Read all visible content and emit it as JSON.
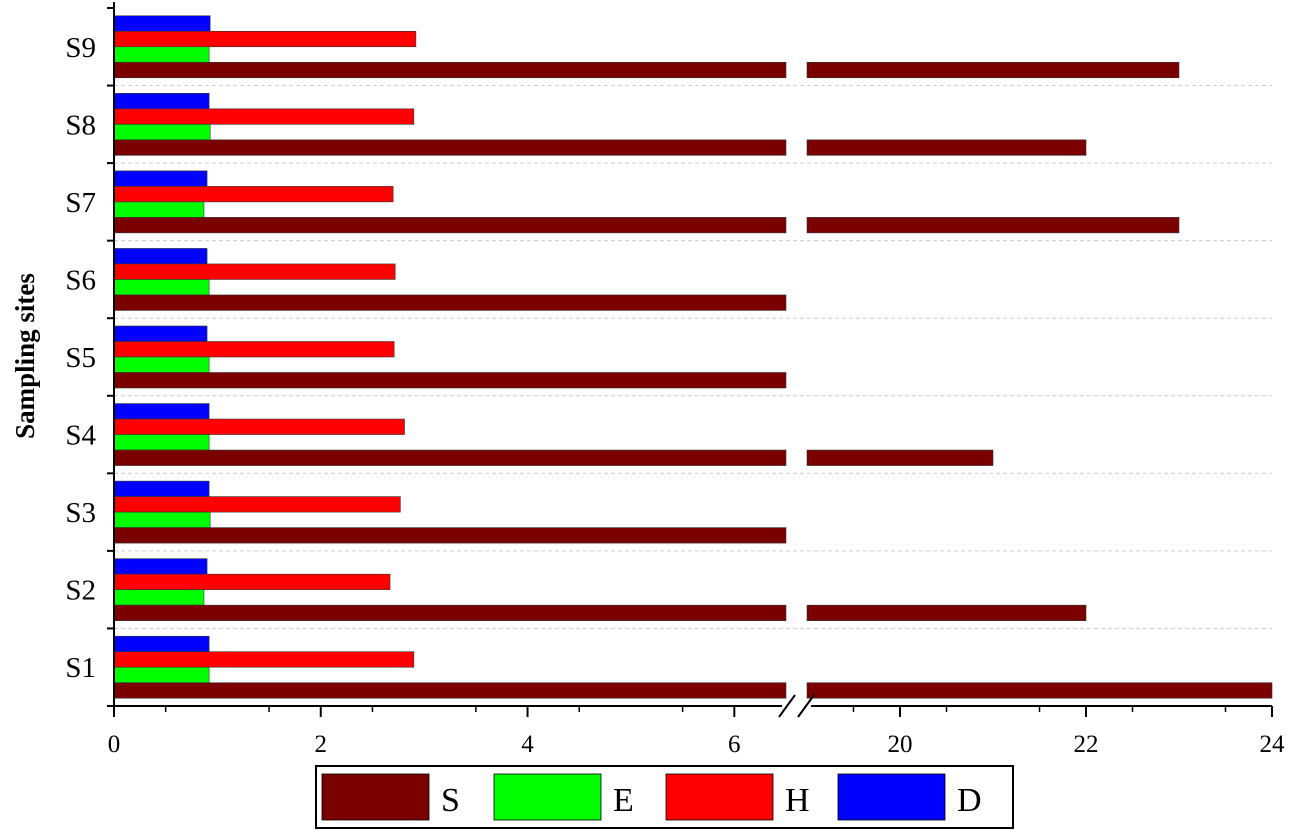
{
  "chart_data": {
    "type": "bar",
    "orientation": "horizontal",
    "categories": [
      "S1",
      "S2",
      "S3",
      "S4",
      "S5",
      "S6",
      "S7",
      "S8",
      "S9"
    ],
    "series": [
      {
        "name": "S",
        "color": "#7b0000",
        "values": [
          24,
          22,
          19,
          21,
          19,
          19,
          23,
          22,
          23
        ]
      },
      {
        "name": "E",
        "color": "#00ff00",
        "values": [
          0.92,
          0.87,
          0.93,
          0.92,
          0.92,
          0.92,
          0.87,
          0.93,
          0.92
        ]
      },
      {
        "name": "H",
        "color": "#ff0000",
        "values": [
          2.9,
          2.67,
          2.77,
          2.81,
          2.71,
          2.72,
          2.7,
          2.9,
          2.92
        ]
      },
      {
        "name": "D",
        "color": "#0000ff",
        "values": [
          0.92,
          0.9,
          0.92,
          0.92,
          0.9,
          0.9,
          0.9,
          0.92,
          0.93
        ]
      }
    ],
    "ylabel": "Sampling sites",
    "xlabel": "",
    "x_axis_break": {
      "from": 6.5,
      "to": 19
    },
    "x_segments": [
      [
        0,
        6.5
      ],
      [
        19,
        24
      ]
    ],
    "x_ticks": [
      0,
      2,
      4,
      6,
      20,
      22,
      24
    ],
    "x_tick_labels": [
      "0",
      "2",
      "4",
      "6",
      "20",
      "22",
      "24"
    ],
    "grid": "horizontal dashed separators",
    "legend": {
      "position": "bottom",
      "entries": [
        "S",
        "E",
        "H",
        "D"
      ]
    }
  }
}
